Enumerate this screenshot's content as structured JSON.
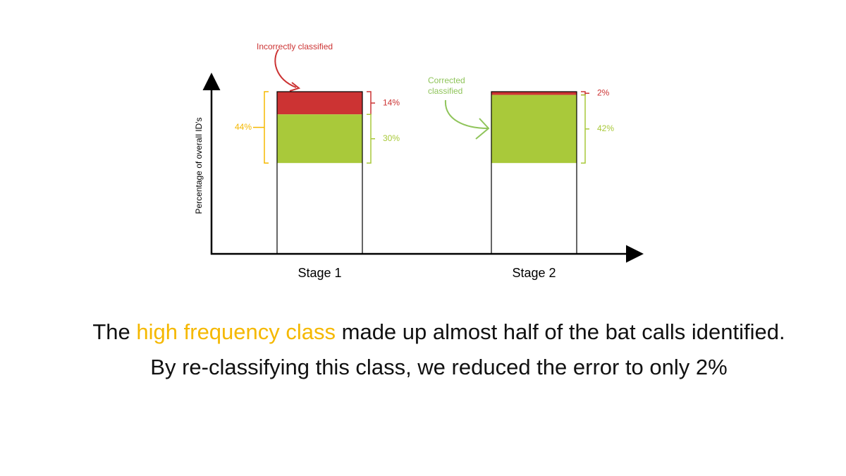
{
  "chart_data": {
    "type": "bar",
    "stacked": true,
    "y_label": "Percentage of overall ID's",
    "categories": [
      "Stage 1",
      "Stage 2"
    ],
    "ylim": [
      0,
      100
    ],
    "series": [
      {
        "color": "#cc3333",
        "values": [
          14,
          2
        ],
        "value_labels": [
          "14%",
          "2%"
        ]
      },
      {
        "color": "#a9c93a",
        "values": [
          30,
          42
        ],
        "value_labels": [
          "30%",
          "42%"
        ]
      }
    ],
    "totals": {
      "color": "#f5b800",
      "values": [
        44,
        null
      ],
      "value_labels": [
        "44%",
        null
      ]
    },
    "annotations": [
      {
        "text": "Incorrectly classified",
        "color": "#cc3333"
      },
      {
        "text": "Corrected classified",
        "color": "#8fc45a"
      }
    ]
  },
  "caption": {
    "before": "The ",
    "highlight": "high frequency class",
    "highlight_color": "#f5b800",
    "after": " made up almost half of the bat calls identified. By re-classifying this class, we reduced the error to only 2%"
  }
}
